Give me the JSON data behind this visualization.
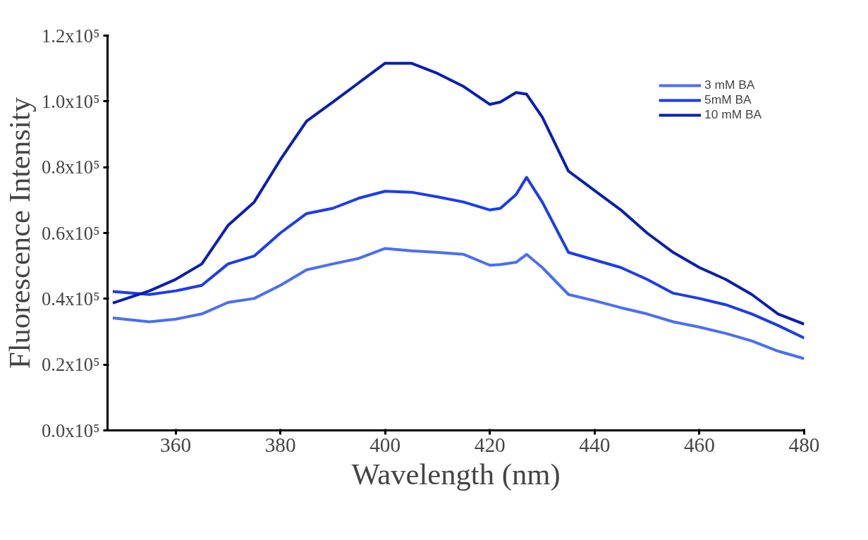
{
  "chart_data": {
    "type": "line",
    "xlabel": "Wavelength (nm)",
    "ylabel": "Fluorescence Intensity",
    "x": [
      348,
      355,
      360,
      365,
      370,
      375,
      380,
      385,
      390,
      395,
      400,
      405,
      410,
      415,
      420,
      422,
      425,
      427,
      430,
      435,
      440,
      445,
      450,
      455,
      460,
      465,
      470,
      475,
      480
    ],
    "series": [
      {
        "name": "3 mM BA",
        "color": "#4a6ef5",
        "values": [
          34200,
          33000,
          33800,
          35400,
          38900,
          40100,
          44100,
          48800,
          50600,
          52300,
          55300,
          54600,
          54100,
          53500,
          50200,
          50400,
          51100,
          53500,
          49500,
          41300,
          39400,
          37300,
          35400,
          33000,
          31400,
          29500,
          27200,
          24100,
          21800
        ]
      },
      {
        "name": "5mM BA",
        "color": "#1a3cf0",
        "values": [
          42200,
          41300,
          42400,
          44100,
          50600,
          53000,
          60000,
          65900,
          67500,
          70600,
          72700,
          72400,
          71000,
          69400,
          67000,
          67500,
          71700,
          76900,
          69400,
          54100,
          51800,
          49500,
          45900,
          41700,
          40100,
          38200,
          35400,
          31900,
          28100
        ]
      },
      {
        "name": "10 mM BA",
        "color": "#0a1fb0",
        "values": [
          38700,
          42400,
          45900,
          50600,
          62300,
          69400,
          82300,
          94000,
          99800,
          105700,
          111600,
          111600,
          108500,
          104500,
          99100,
          99800,
          102700,
          102200,
          95200,
          78800,
          72900,
          67000,
          60000,
          54100,
          49500,
          45900,
          41300,
          35400,
          32300
        ]
      }
    ],
    "xlim": [
      347,
      480
    ],
    "xticks": [
      360,
      380,
      400,
      420,
      440,
      460,
      480
    ],
    "ylim": [
      0,
      120000
    ],
    "yticks": [
      {
        "value": 0,
        "label": "0.0x10⁵"
      },
      {
        "value": 20000,
        "label": "0.2x10⁵"
      },
      {
        "value": 40000,
        "label": "0.4x10⁵"
      },
      {
        "value": 60000,
        "label": "0.6x10⁵"
      },
      {
        "value": 80000,
        "label": "0.8x10⁵"
      },
      {
        "value": 100000,
        "label": "1.0x10⁵"
      },
      {
        "value": 120000,
        "label": "1.2x10⁵"
      }
    ],
    "legend": "top right",
    "grid": false,
    "marker": "none",
    "line_style": "solid"
  }
}
